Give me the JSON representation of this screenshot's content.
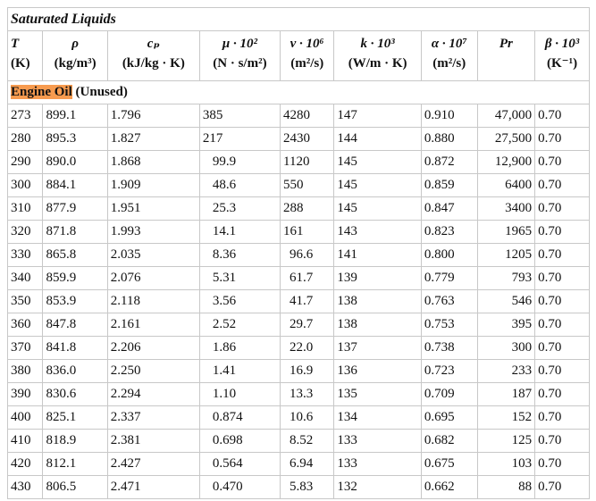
{
  "title": "Saturated Liquids",
  "columns": [
    {
      "symbol": "T",
      "unit": "(K)"
    },
    {
      "symbol": "ρ",
      "unit": "(kg/m³)"
    },
    {
      "symbol": "cₚ",
      "unit": "(kJ/kg · K)"
    },
    {
      "symbol": "μ · 10²",
      "unit": "(N · s/m²)"
    },
    {
      "symbol": "ν · 10⁶",
      "unit": "(m²/s)"
    },
    {
      "symbol": "k · 10³",
      "unit": "(W/m · K)"
    },
    {
      "symbol": "α · 10⁷",
      "unit": "(m²/s)"
    },
    {
      "symbol": "Pr",
      "unit": ""
    },
    {
      "symbol": "β · 10³",
      "unit": "(K⁻¹)"
    }
  ],
  "section": {
    "highlight": "Engine Oil",
    "rest": " (Unused)",
    "highlight_color": "#f79b4f"
  },
  "rows": [
    [
      "273",
      "899.1",
      "1.796",
      "385",
      "4280",
      "147",
      "0.910",
      "47,000",
      "0.70"
    ],
    [
      "280",
      "895.3",
      "1.827",
      "217",
      "2430",
      "144",
      "0.880",
      "27,500",
      "0.70"
    ],
    [
      "290",
      "890.0",
      "1.868",
      "99.9",
      "1120",
      "145",
      "0.872",
      "12,900",
      "0.70"
    ],
    [
      "300",
      "884.1",
      "1.909",
      "48.6",
      "550",
      "145",
      "0.859",
      "6400",
      "0.70"
    ],
    [
      "310",
      "877.9",
      "1.951",
      "25.3",
      "288",
      "145",
      "0.847",
      "3400",
      "0.70"
    ],
    [
      "320",
      "871.8",
      "1.993",
      "14.1",
      "161",
      "143",
      "0.823",
      "1965",
      "0.70"
    ],
    [
      "330",
      "865.8",
      "2.035",
      "8.36",
      "96.6",
      "141",
      "0.800",
      "1205",
      "0.70"
    ],
    [
      "340",
      "859.9",
      "2.076",
      "5.31",
      "61.7",
      "139",
      "0.779",
      "793",
      "0.70"
    ],
    [
      "350",
      "853.9",
      "2.118",
      "3.56",
      "41.7",
      "138",
      "0.763",
      "546",
      "0.70"
    ],
    [
      "360",
      "847.8",
      "2.161",
      "2.52",
      "29.7",
      "138",
      "0.753",
      "395",
      "0.70"
    ],
    [
      "370",
      "841.8",
      "2.206",
      "1.86",
      "22.0",
      "137",
      "0.738",
      "300",
      "0.70"
    ],
    [
      "380",
      "836.0",
      "2.250",
      "1.41",
      "16.9",
      "136",
      "0.723",
      "233",
      "0.70"
    ],
    [
      "390",
      "830.6",
      "2.294",
      "1.10",
      "13.3",
      "135",
      "0.709",
      "187",
      "0.70"
    ],
    [
      "400",
      "825.1",
      "2.337",
      "0.874",
      "10.6",
      "134",
      "0.695",
      "152",
      "0.70"
    ],
    [
      "410",
      "818.9",
      "2.381",
      "0.698",
      "8.52",
      "133",
      "0.682",
      "125",
      "0.70"
    ],
    [
      "420",
      "812.1",
      "2.427",
      "0.564",
      "6.94",
      "133",
      "0.675",
      "103",
      "0.70"
    ],
    [
      "430",
      "806.5",
      "2.471",
      "0.470",
      "5.83",
      "132",
      "0.662",
      "88",
      "0.70"
    ]
  ]
}
